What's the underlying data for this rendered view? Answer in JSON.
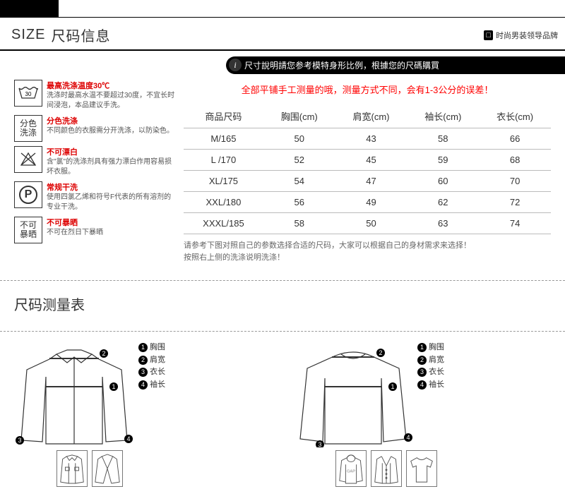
{
  "header": {
    "size_word": "SIZE",
    "title": "尺码信息",
    "badge": "□",
    "brand": "时尚男装领导品牌"
  },
  "band": "尺寸說明請您参考模特身形比例，根據您的尺碼購買",
  "care": [
    {
      "icon": "30",
      "title": "最高洗涤温度30℃",
      "desc": "洗涤时最高水温不要超过30度，不宜长时间浸泡，本品建议手洗。"
    },
    {
      "icon": "分色\n洗涤",
      "title": "分色洗涤",
      "desc": "不同颜色的衣服需分开洗涤，以防染色。"
    },
    {
      "icon": "x",
      "title": "不可漂白",
      "desc": "含\"氯\"的洗涤剂具有强力漂白作用容易损坏衣服。"
    },
    {
      "icon": "P",
      "title": "常规干洗",
      "desc": "使用四氯乙烯和符号F代表的所有溶剂的专业干洗。"
    },
    {
      "icon": "不可\n暴晒",
      "title": "不可暴晒",
      "desc": "不可在烈日下暴晒"
    }
  ],
  "warn": "全部平铺手工测量的哦，测量方式不同，会有1-3公分的误差！",
  "table": {
    "cols": [
      "商品尺码",
      "胸围(cm)",
      "肩宽(cm)",
      "袖长(cm)",
      "衣长(cm)"
    ],
    "rows": [
      [
        "M/165",
        "50",
        "43",
        "58",
        "66"
      ],
      [
        "L /170",
        "52",
        "45",
        "59",
        "68"
      ],
      [
        "XL/175",
        "54",
        "47",
        "60",
        "70"
      ],
      [
        "XXL/180",
        "56",
        "49",
        "62",
        "72"
      ],
      [
        "XXXL/185",
        "58",
        "50",
        "63",
        "74"
      ]
    ]
  },
  "note": "请参考下图对照自己的参数选择合适的尺码，大家可以根据自己的身材需求来选择！\n按照右上侧的洗涤说明洗涤！",
  "measure_title": "尺码测量表",
  "legend": [
    "胸围",
    "肩宽",
    "衣长",
    "袖长"
  ],
  "colors": {
    "accent": "#d00",
    "warn": "#f00",
    "line": "#333"
  }
}
